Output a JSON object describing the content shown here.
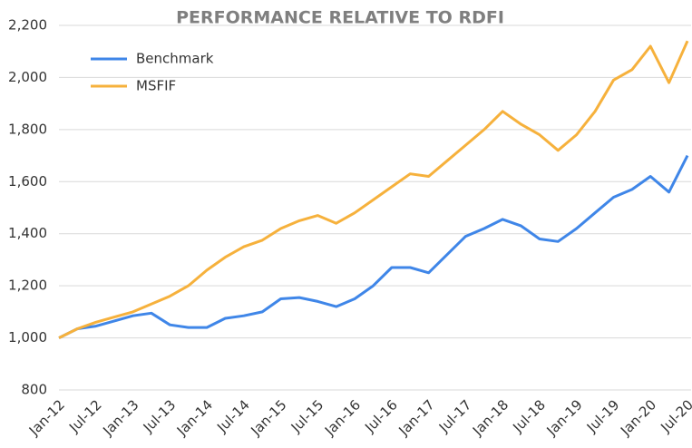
{
  "chart_data": {
    "type": "line",
    "title": "PERFORMANCE RELATIVE TO RDFI",
    "categories": [
      "Jan-12",
      null,
      "Jul-12",
      null,
      "Jan-13",
      null,
      "Jul-13",
      null,
      "Jan-14",
      null,
      "Jul-14",
      null,
      "Jan-15",
      null,
      "Jul-15",
      null,
      "Jan-16",
      null,
      "Jul-16",
      null,
      "Jan-17",
      null,
      "Jul-17",
      null,
      "Jan-18",
      null,
      "Jul-18",
      null,
      "Jan-19",
      null,
      "Jul-19",
      null,
      "Jan-20",
      null,
      "Jul-20"
    ],
    "series": [
      {
        "name": "Benchmark",
        "color": "#3f86e8",
        "values": [
          1000,
          1035,
          1045,
          1065,
          1085,
          1095,
          1050,
          1040,
          1040,
          1075,
          1085,
          1100,
          1150,
          1155,
          1140,
          1120,
          1150,
          1200,
          1270,
          1270,
          1250,
          1320,
          1390,
          1420,
          1455,
          1430,
          1380,
          1370,
          1420,
          1480,
          1540,
          1570,
          1620,
          1560,
          1700
        ]
      },
      {
        "name": "MSFIF",
        "color": "#f6b13c",
        "values": [
          1000,
          1035,
          1060,
          1080,
          1100,
          1130,
          1160,
          1200,
          1260,
          1310,
          1350,
          1375,
          1420,
          1450,
          1470,
          1440,
          1480,
          1530,
          1580,
          1630,
          1620,
          1680,
          1740,
          1800,
          1870,
          1820,
          1780,
          1720,
          1780,
          1870,
          1990,
          2030,
          2120,
          1980,
          2140
        ]
      }
    ],
    "ylim": [
      800,
      2200
    ],
    "yticks": [
      800,
      {
        "value": 1000,
        "label": "1,000"
      },
      {
        "value": 1200,
        "label": "1,200"
      },
      {
        "value": 1400,
        "label": "1,400"
      },
      {
        "value": 1600,
        "label": "1,600"
      },
      {
        "value": 1800,
        "label": "1,800"
      },
      {
        "value": 2000,
        "label": "2,000"
      },
      {
        "value": 2200,
        "label": "2,200"
      }
    ],
    "grid": true,
    "legend": "upper left"
  }
}
